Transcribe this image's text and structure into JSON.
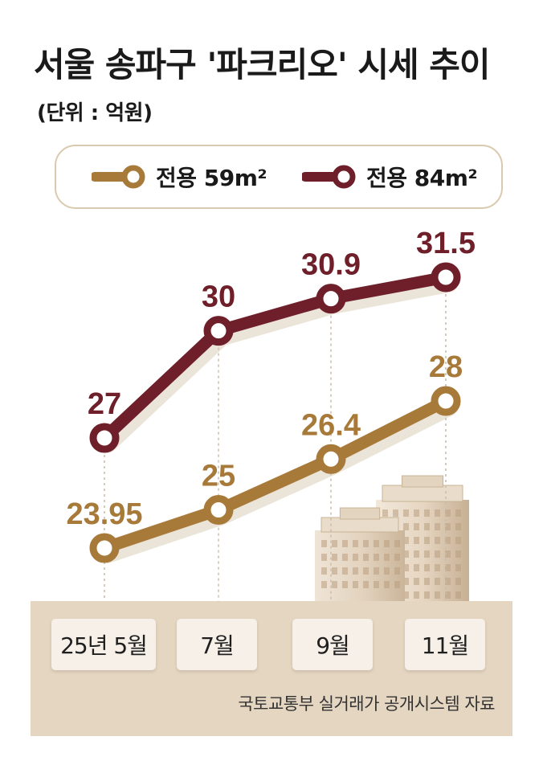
{
  "title": "서울 송파구 '파크리오' 시세 추이",
  "unit_label": "(단위 : 억원)",
  "source": "국토교통부 실거래가 공개시스템 자료",
  "colors": {
    "series_59": "#a87a3a",
    "series_84": "#6e1f2a",
    "panel": "#e5d6c1"
  },
  "chart_data": {
    "type": "line",
    "categories": [
      "25년 5월",
      "7월",
      "9월",
      "11월"
    ],
    "series": [
      {
        "name": "전용 59m²",
        "values": [
          23.95,
          25,
          26.4,
          28
        ],
        "labels": [
          "23.95",
          "25",
          "26.4",
          "28"
        ]
      },
      {
        "name": "전용 84m²",
        "values": [
          27,
          30,
          30.9,
          31.5
        ],
        "labels": [
          "27",
          "30",
          "30.9",
          "31.5"
        ]
      }
    ],
    "legend": "top"
  }
}
